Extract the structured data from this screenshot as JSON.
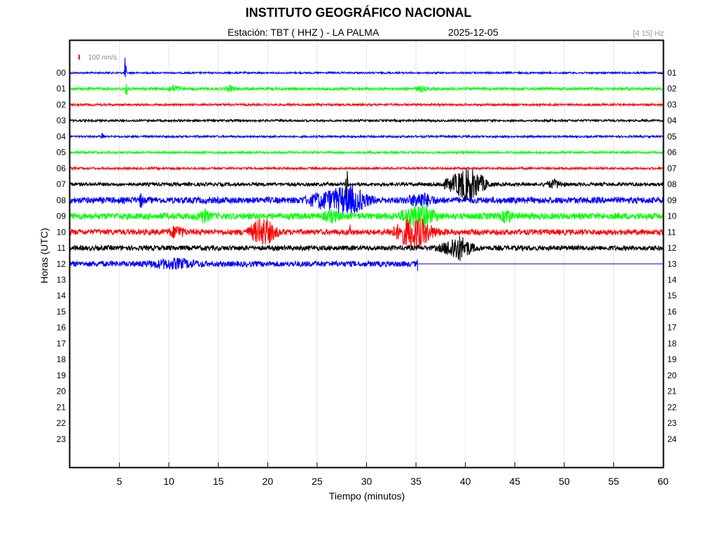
{
  "header": {
    "title": "INSTITUTO GEOGRÁFICO NACIONAL",
    "station": "Estación:  TBT ( HHZ ) - LA PALMA",
    "date": "2025-12-05",
    "filter": "[4 15] Hz"
  },
  "scale_label": "100 nm/s",
  "colors": {
    "blue": "#0000ff",
    "green": "#00ff00",
    "red": "#ff0000",
    "black": "#000000",
    "scale": "#ff0000"
  },
  "chart_data": {
    "type": "line",
    "xlabel": "Tiempo (minutos)",
    "ylabel": "Horas (UTC)",
    "xlim": [
      0,
      60
    ],
    "xticks": [
      5,
      10,
      15,
      20,
      25,
      30,
      35,
      40,
      45,
      50,
      55,
      60
    ],
    "grid": "x",
    "left_labels": [
      "00",
      "01",
      "02",
      "03",
      "04",
      "05",
      "06",
      "07",
      "08",
      "09",
      "10",
      "11",
      "12",
      "13",
      "14",
      "15",
      "16",
      "17",
      "18",
      "19",
      "20",
      "21",
      "22",
      "23"
    ],
    "right_labels": [
      "01",
      "02",
      "03",
      "04",
      "05",
      "06",
      "07",
      "08",
      "09",
      "10",
      "11",
      "12",
      "13",
      "14",
      "15",
      "16",
      "17",
      "18",
      "19",
      "20",
      "21",
      "22",
      "23",
      "24"
    ],
    "traces": [
      {
        "hour": 0,
        "color": "blue",
        "end_min": 60,
        "noise": 1.2,
        "events": [
          {
            "t": 5.6,
            "amp": 28,
            "dur": 0.05
          }
        ]
      },
      {
        "hour": 1,
        "color": "green",
        "end_min": 60,
        "noise": 2.0,
        "events": [
          {
            "t": 5.7,
            "amp": 12,
            "dur": 0.05
          },
          {
            "t": 10.5,
            "amp": 4,
            "dur": 0.4
          },
          {
            "t": 16.2,
            "amp": 3,
            "dur": 0.3
          },
          {
            "t": 35.5,
            "amp": 3,
            "dur": 0.3
          }
        ]
      },
      {
        "hour": 2,
        "color": "red",
        "end_min": 60,
        "noise": 1.5,
        "events": []
      },
      {
        "hour": 3,
        "color": "black",
        "end_min": 60,
        "noise": 1.5,
        "events": []
      },
      {
        "hour": 4,
        "color": "blue",
        "end_min": 60,
        "noise": 1.4,
        "events": [
          {
            "t": 3.3,
            "amp": 5,
            "dur": 0.1
          }
        ]
      },
      {
        "hour": 5,
        "color": "green",
        "end_min": 60,
        "noise": 1.5,
        "events": []
      },
      {
        "hour": 6,
        "color": "red",
        "end_min": 60,
        "noise": 1.5,
        "events": []
      },
      {
        "hour": 7,
        "color": "black",
        "end_min": 60,
        "noise": 2.5,
        "events": [
          {
            "t": 28,
            "amp": 30,
            "dur": 0.05
          },
          {
            "t": 39.2,
            "amp": 10,
            "dur": 1.0
          },
          {
            "t": 40.3,
            "amp": 16,
            "dur": 0.7
          },
          {
            "t": 41.5,
            "amp": 8,
            "dur": 0.6
          },
          {
            "t": 49,
            "amp": 5,
            "dur": 0.5
          }
        ]
      },
      {
        "hour": 8,
        "color": "blue",
        "end_min": 60,
        "noise": 4.5,
        "events": [
          {
            "t": 7.2,
            "amp": 10,
            "dur": 0.1
          },
          {
            "t": 25.5,
            "amp": 8,
            "dur": 1.0
          },
          {
            "t": 28.2,
            "amp": 18,
            "dur": 1.2
          },
          {
            "t": 35.5,
            "amp": 8,
            "dur": 0.8
          }
        ]
      },
      {
        "hour": 9,
        "color": "green",
        "end_min": 60,
        "noise": 4.5,
        "events": [
          {
            "t": 13.5,
            "amp": 7,
            "dur": 0.4
          },
          {
            "t": 26.5,
            "amp": 6,
            "dur": 0.5
          },
          {
            "t": 35.2,
            "amp": 16,
            "dur": 1.0
          },
          {
            "t": 44.2,
            "amp": 9,
            "dur": 0.3
          }
        ]
      },
      {
        "hour": 10,
        "color": "red",
        "end_min": 60,
        "noise": 4.0,
        "events": [
          {
            "t": 10.8,
            "amp": 7,
            "dur": 0.5
          },
          {
            "t": 19.5,
            "amp": 18,
            "dur": 0.8
          },
          {
            "t": 34.8,
            "amp": 20,
            "dur": 1.2
          },
          {
            "t": 28.3,
            "amp": 14,
            "dur": 0.05
          }
        ]
      },
      {
        "hour": 11,
        "color": "black",
        "end_min": 60,
        "noise": 3.5,
        "events": [
          {
            "t": 39.2,
            "amp": 16,
            "dur": 0.9
          }
        ]
      },
      {
        "hour": 12,
        "color": "blue",
        "end_min": 35.2,
        "noise": 4.0,
        "events": [
          {
            "t": 10.5,
            "amp": 5,
            "dur": 1.5
          },
          {
            "t": 35.2,
            "amp": 8,
            "dur": 0.05
          }
        ]
      }
    ]
  }
}
